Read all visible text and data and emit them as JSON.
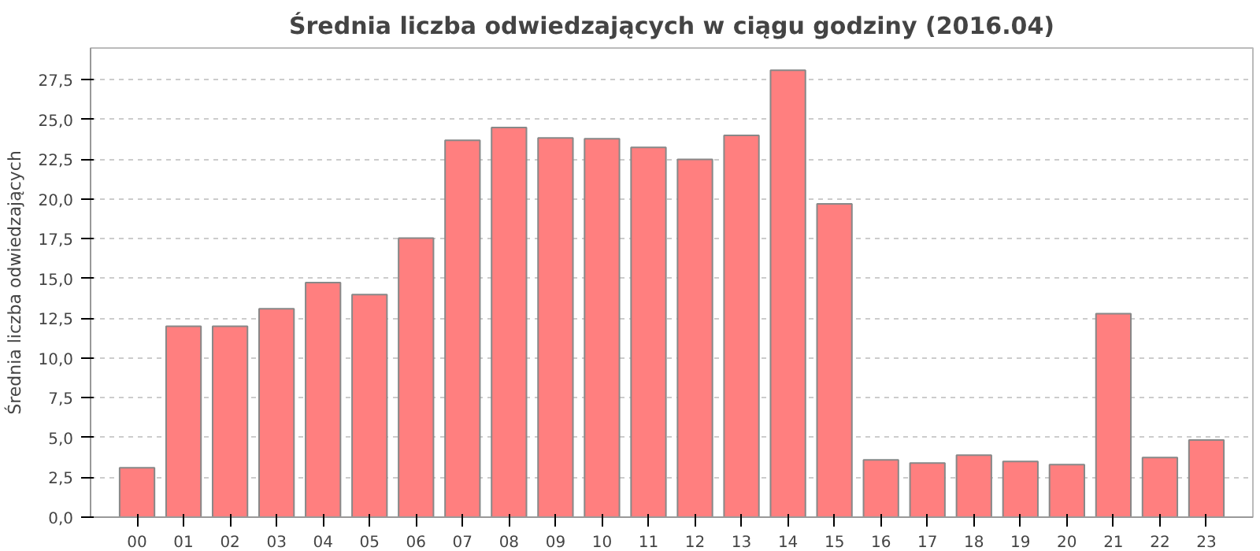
{
  "chart_data": {
    "type": "bar",
    "title": "Średnia liczba odwiedzających w ciągu godziny (2016.04)",
    "ylabel": "Średnia liczba odwiedzających",
    "categories": [
      "00",
      "01",
      "02",
      "03",
      "04",
      "05",
      "06",
      "07",
      "08",
      "09",
      "10",
      "11",
      "12",
      "13",
      "14",
      "15",
      "16",
      "17",
      "18",
      "19",
      "20",
      "21",
      "22",
      "23"
    ],
    "values": [
      3.1,
      12.0,
      12.0,
      13.1,
      14.75,
      14.0,
      17.55,
      23.7,
      24.5,
      23.85,
      23.8,
      23.25,
      22.5,
      24.0,
      28.1,
      19.7,
      3.6,
      3.4,
      3.9,
      3.5,
      3.3,
      12.8,
      3.75,
      4.85
    ],
    "color": "#ff7f7f",
    "ylim": [
      0,
      29.5
    ],
    "yticks": [
      {
        "value": 0,
        "label": "0,0"
      },
      {
        "value": 2.5,
        "label": "2,5"
      },
      {
        "value": 5,
        "label": "5,0"
      },
      {
        "value": 7.5,
        "label": "7,5"
      },
      {
        "value": 10,
        "label": "10,0"
      },
      {
        "value": 12.5,
        "label": "12,5"
      },
      {
        "value": 15,
        "label": "15,0"
      },
      {
        "value": 17.5,
        "label": "17,5"
      },
      {
        "value": 20,
        "label": "20,0"
      },
      {
        "value": 22.5,
        "label": "22,5"
      },
      {
        "value": 25,
        "label": "25,0"
      },
      {
        "value": 27.5,
        "label": "27,5"
      }
    ],
    "grid": "y"
  }
}
